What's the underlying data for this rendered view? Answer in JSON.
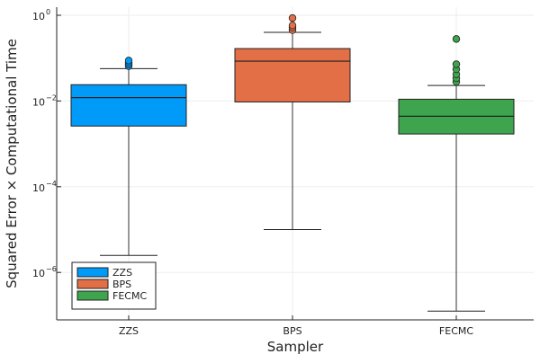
{
  "chart_data": {
    "type": "box",
    "xlabel": "Sampler",
    "ylabel": "Squared Error × Computational Time",
    "yscale": "log10",
    "ylim": [
      1e-07,
      1.5
    ],
    "yticks": [
      {
        "exp": 0,
        "label": "10",
        "sup": "0"
      },
      {
        "exp": -2,
        "label": "10",
        "sup": "−2"
      },
      {
        "exp": -4,
        "label": "10",
        "sup": "−4"
      },
      {
        "exp": -6,
        "label": "10",
        "sup": "−6"
      }
    ],
    "grid": true,
    "legend": "bottom-left",
    "categories": [
      "ZZS",
      "BPS",
      "FECMC"
    ],
    "series": [
      {
        "name": "ZZS",
        "color": "#009af9",
        "whisker_low": 2.5e-06,
        "q1": 0.0026,
        "median": 0.012,
        "q3": 0.024,
        "whisker_high": 0.057,
        "outliers": [
          0.065,
          0.072,
          0.08,
          0.088
        ]
      },
      {
        "name": "BPS",
        "color": "#e26f46",
        "whisker_low": 1e-05,
        "q1": 0.0095,
        "median": 0.085,
        "q3": 0.167,
        "whisker_high": 0.4,
        "outliers": [
          0.45,
          0.52,
          0.58,
          0.86
        ]
      },
      {
        "name": "FECMC",
        "color": "#3ea44e",
        "whisker_low": 1.25e-07,
        "q1": 0.0017,
        "median": 0.0044,
        "q3": 0.011,
        "whisker_high": 0.023,
        "outliers": [
          0.028,
          0.034,
          0.042,
          0.055,
          0.072,
          0.28
        ]
      }
    ]
  }
}
